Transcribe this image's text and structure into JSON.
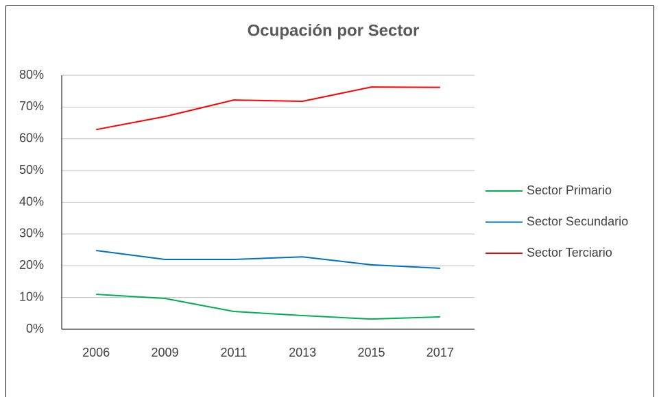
{
  "chart_data": {
    "type": "line",
    "title": "Ocupación por Sector",
    "categories": [
      "2006",
      "2009",
      "2011",
      "2013",
      "2015",
      "2017"
    ],
    "series": [
      {
        "name": "Sector Primario",
        "color": "#00b050",
        "values": [
          11.0,
          9.7,
          5.6,
          4.3,
          3.2,
          3.9
        ]
      },
      {
        "name": "Sector Secundario",
        "color": "#0070c0",
        "values": [
          24.8,
          22.0,
          22.0,
          22.8,
          20.3,
          19.2
        ]
      },
      {
        "name": "Sector Terciario",
        "color": "#ff0000",
        "values": [
          62.9,
          67.0,
          72.2,
          71.8,
          76.3,
          76.2
        ]
      }
    ],
    "ylim": [
      0,
      80
    ],
    "yticks": [
      {
        "value": 0,
        "label": "0%"
      },
      {
        "value": 10,
        "label": "10%"
      },
      {
        "value": 20,
        "label": "20%"
      },
      {
        "value": 30,
        "label": "30%"
      },
      {
        "value": 40,
        "label": "40%"
      },
      {
        "value": 50,
        "label": "50%"
      },
      {
        "value": 60,
        "label": "60%"
      },
      {
        "value": 70,
        "label": "70%"
      },
      {
        "value": 80,
        "label": "80%"
      }
    ],
    "grid": true,
    "legend": "right"
  }
}
